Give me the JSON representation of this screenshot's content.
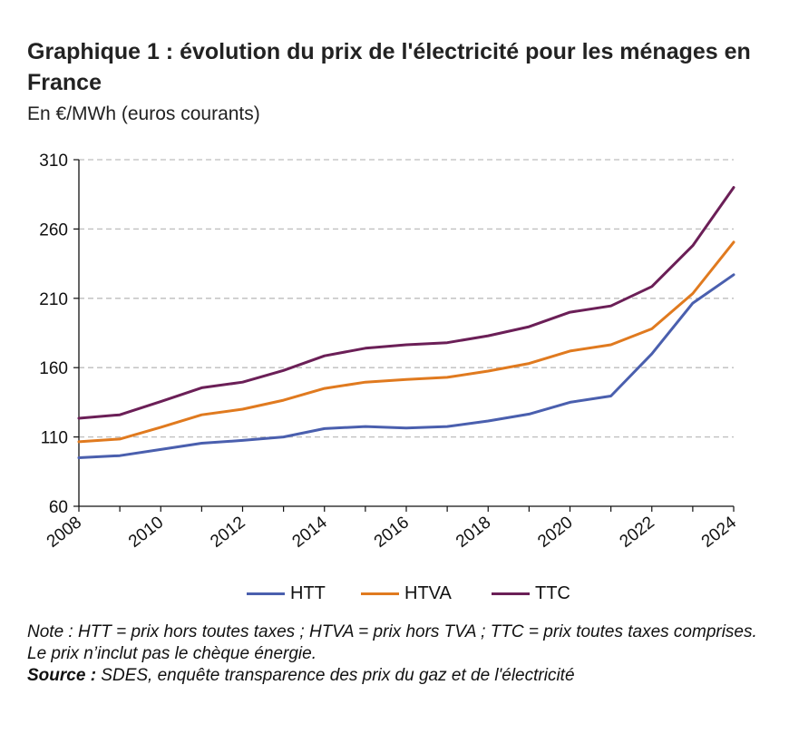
{
  "header": {
    "title": "Graphique 1 : évolution du prix de l'électricité pour les ménages en France",
    "subtitle": "En €/MWh (euros courants)"
  },
  "colors": {
    "HTT": "#4a5fae",
    "HTVA": "#e07a1f",
    "TTC": "#6b1f57",
    "grid": "#bdbdbd",
    "axis": "#111111"
  },
  "chart_data": {
    "type": "line",
    "title": "Graphique 1 : évolution du prix de l'électricité pour les ménages en France",
    "ylabel": "En €/MWh (euros courants)",
    "xlabel": "",
    "ylim": [
      60,
      310
    ],
    "yticks": [
      60,
      110,
      160,
      210,
      260,
      310
    ],
    "xticks": [
      2008,
      2010,
      2012,
      2014,
      2016,
      2018,
      2020,
      2022,
      2024
    ],
    "x": [
      2008,
      2009,
      2010,
      2011,
      2012,
      2013,
      2014,
      2015,
      2016,
      2017,
      2018,
      2019,
      2020,
      2021,
      2022,
      2023,
      2024
    ],
    "series": [
      {
        "name": "HTT",
        "values": [
          95,
          96.5,
          101,
          105.5,
          107.5,
          110,
          116,
          117.5,
          116.5,
          117.5,
          121.5,
          126.5,
          135,
          139.5,
          170,
          206.5,
          227
        ]
      },
      {
        "name": "HTVA",
        "values": [
          106.5,
          108.5,
          117,
          126,
          130,
          136.5,
          145,
          149.5,
          151.5,
          153,
          157.5,
          163,
          172,
          176.5,
          188,
          213.5,
          250.5
        ]
      },
      {
        "name": "TTC",
        "values": [
          123.5,
          126,
          135.5,
          145.5,
          149.5,
          158,
          168.5,
          174,
          176.5,
          178,
          183,
          189.5,
          200,
          204.5,
          218.5,
          248,
          290
        ]
      }
    ],
    "grid": true,
    "legend_position": "bottom-center"
  },
  "legend": {
    "items": [
      "HTT",
      "HTVA",
      "TTC"
    ]
  },
  "footer": {
    "note": "Note : HTT = prix hors toutes taxes ; HTVA = prix hors TVA ; TTC = prix toutes taxes comprises. Le prix n’inclut pas le chèque énergie.",
    "source_label": "Source :",
    "source_text": " SDES, enquête transparence des prix du gaz et de l'électricité"
  }
}
